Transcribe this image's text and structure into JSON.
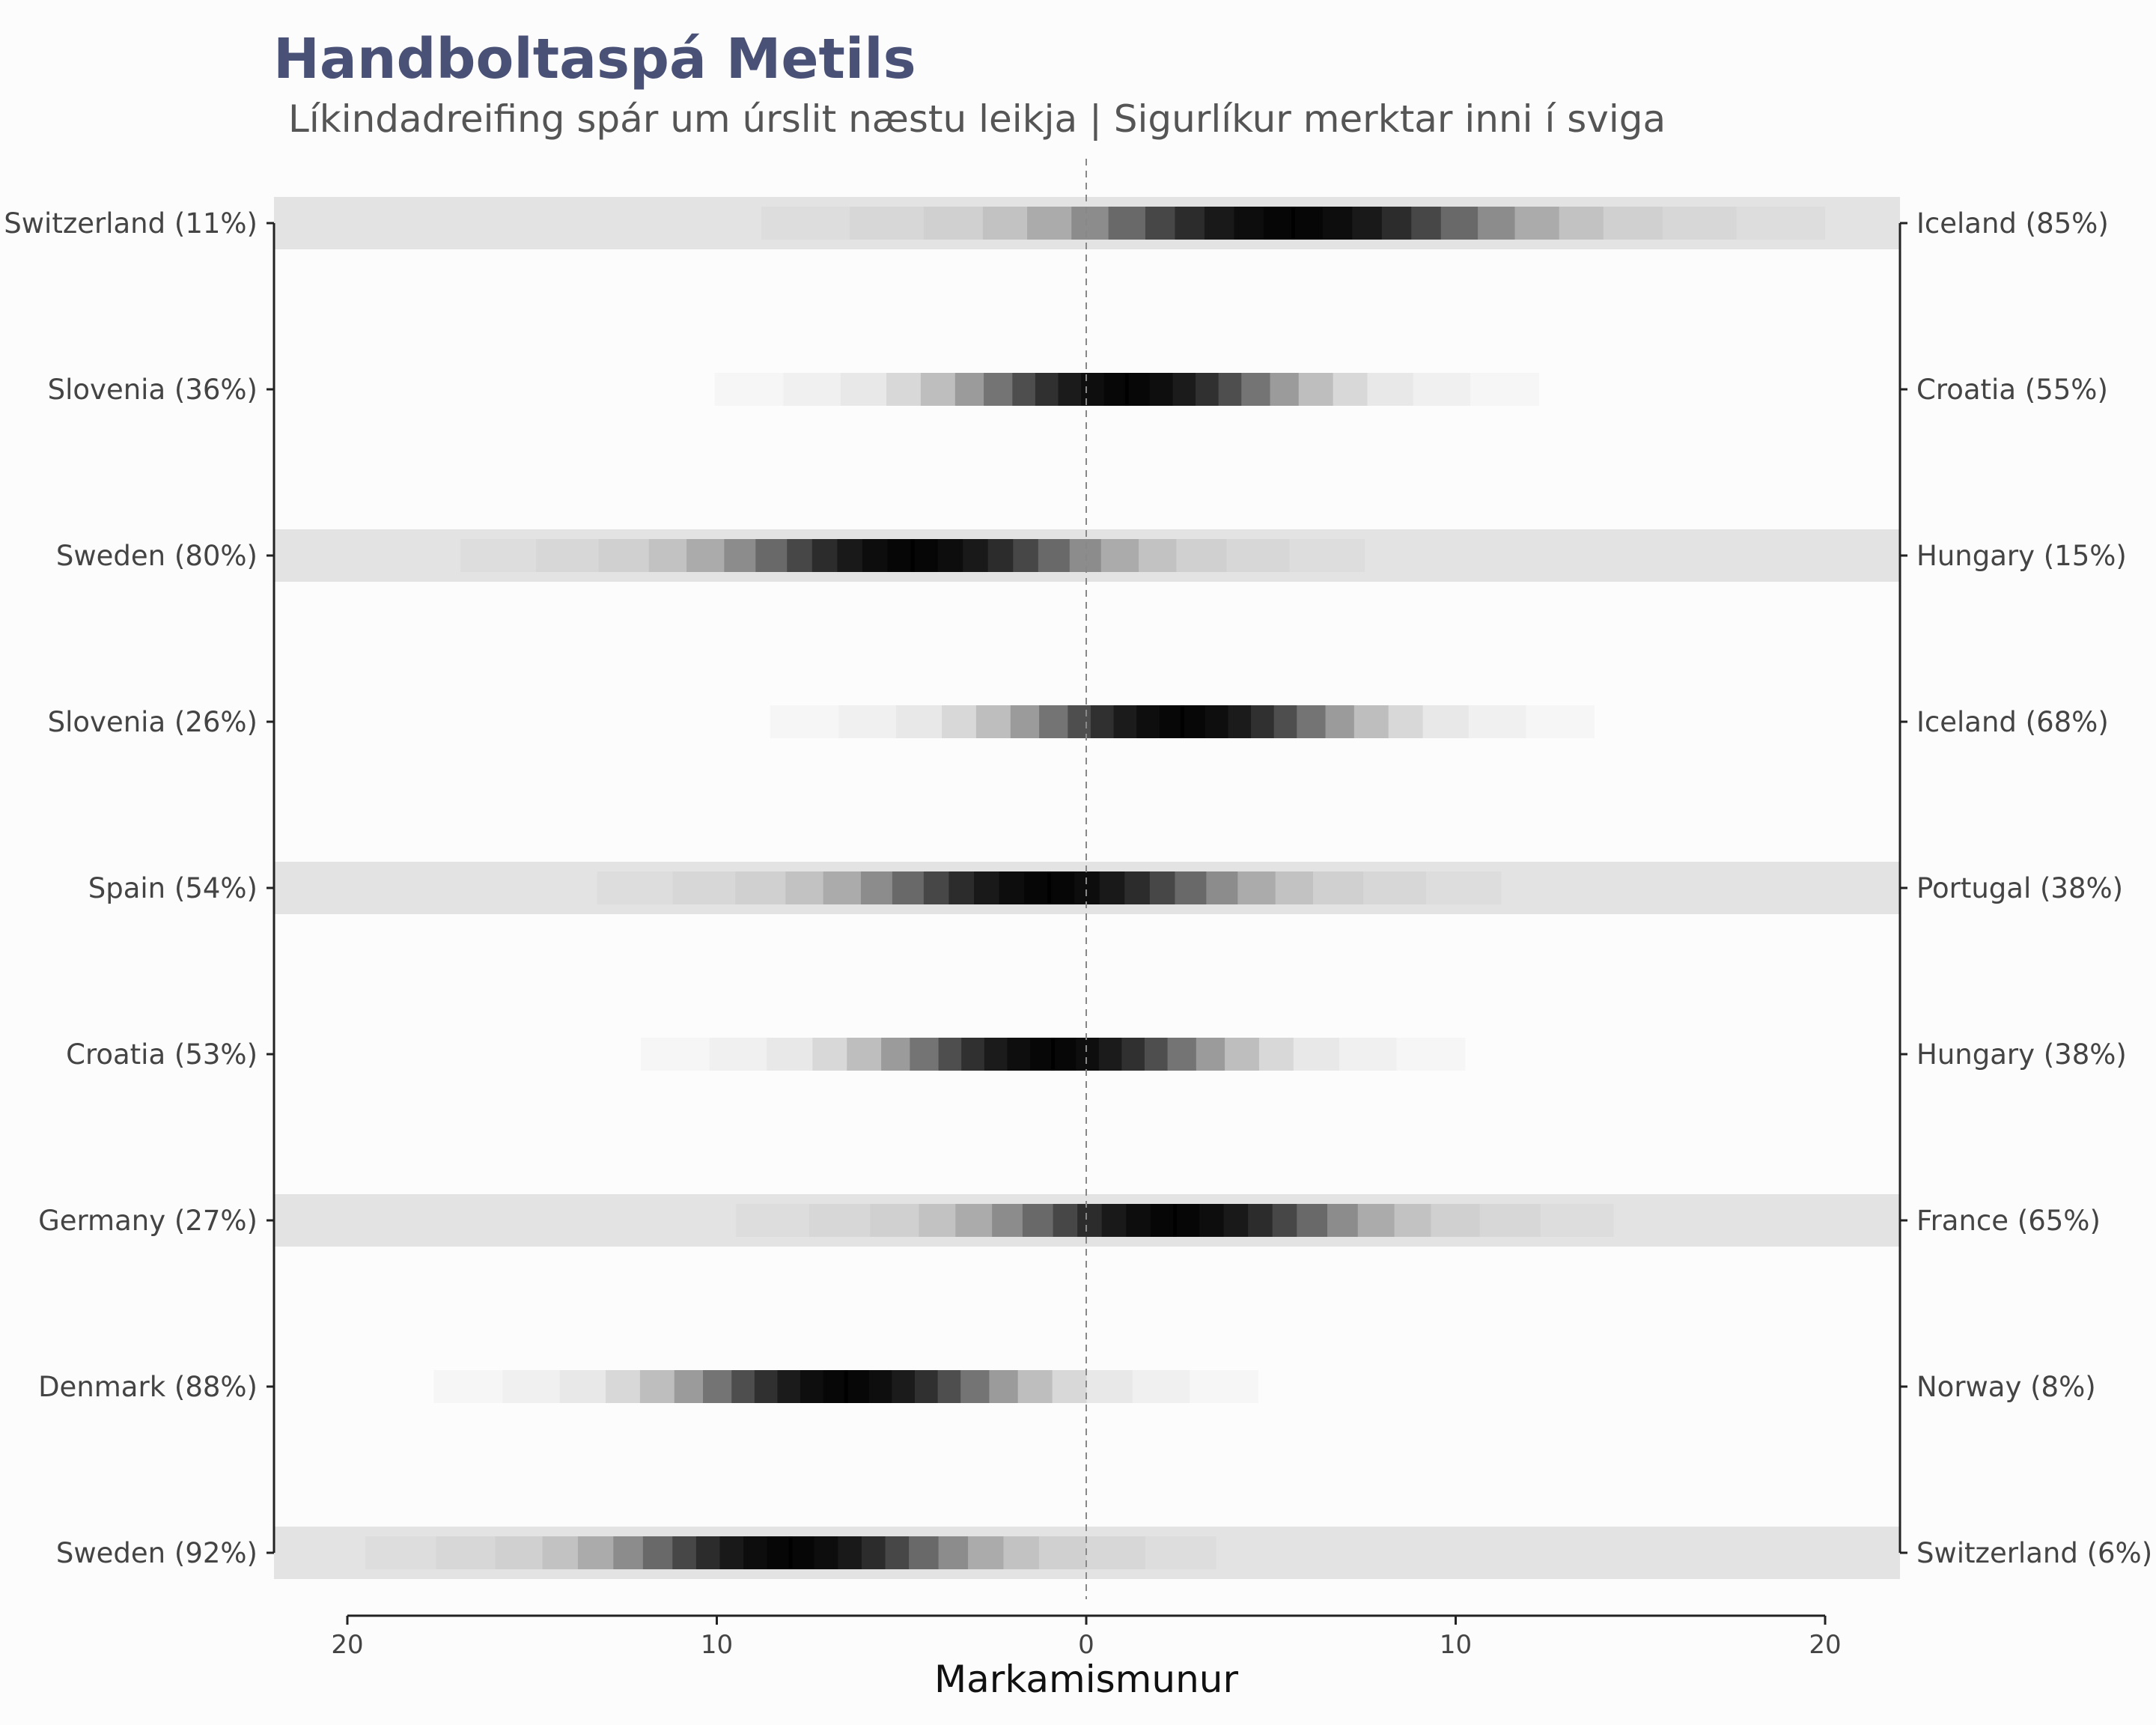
{
  "title": "Handboltaspá Metils",
  "subtitle": "Líkindadreifing spár um úrslit næstu leikja | Sigurlíkur merktar inni í sviga",
  "chart_data": {
    "type": "heatmap",
    "title": "Handboltaspá Metils",
    "subtitle": "Líkindadreifing spár um úrslit næstu leikja | Sigurlíkur merktar inni í sviga",
    "xlabel": "Markamismunur",
    "ylabel": "",
    "xlim": [
      -20,
      20
    ],
    "x_axis_reversed_left": true,
    "x_ticks": [
      -20,
      -10,
      0,
      10,
      20
    ],
    "x_tick_labels": [
      "20",
      "10",
      "0",
      "10",
      "20"
    ],
    "reference_line": 0,
    "grid": false,
    "band_shading": "alternating rows",
    "matches": [
      {
        "left": "Switzerland (11%)",
        "right": "Iceland (85%)",
        "median": 5.6,
        "spread": 4.0
      },
      {
        "left": "Slovenia (36%)",
        "right": "Croatia (55%)",
        "median": 1.1,
        "spread": 3.1
      },
      {
        "left": "Sweden (80%)",
        "right": "Hungary (15%)",
        "median": -4.7,
        "spread": 3.4
      },
      {
        "left": "Slovenia (26%)",
        "right": "Iceland (68%)",
        "median": 2.6,
        "spread": 3.1
      },
      {
        "left": "Spain (54%)",
        "right": "Portugal (38%)",
        "median": -1.0,
        "spread": 3.4
      },
      {
        "left": "Croatia (53%)",
        "right": "Hungary (38%)",
        "median": -0.9,
        "spread": 3.1
      },
      {
        "left": "Germany (27%)",
        "right": "France (65%)",
        "median": 2.4,
        "spread": 3.3
      },
      {
        "left": "Denmark (88%)",
        "right": "Norway (8%)",
        "median": -6.5,
        "spread": 3.1
      },
      {
        "left": "Sweden (92%)",
        "right": "Switzerland (6%)",
        "median": -8.0,
        "spread": 3.2
      }
    ]
  }
}
